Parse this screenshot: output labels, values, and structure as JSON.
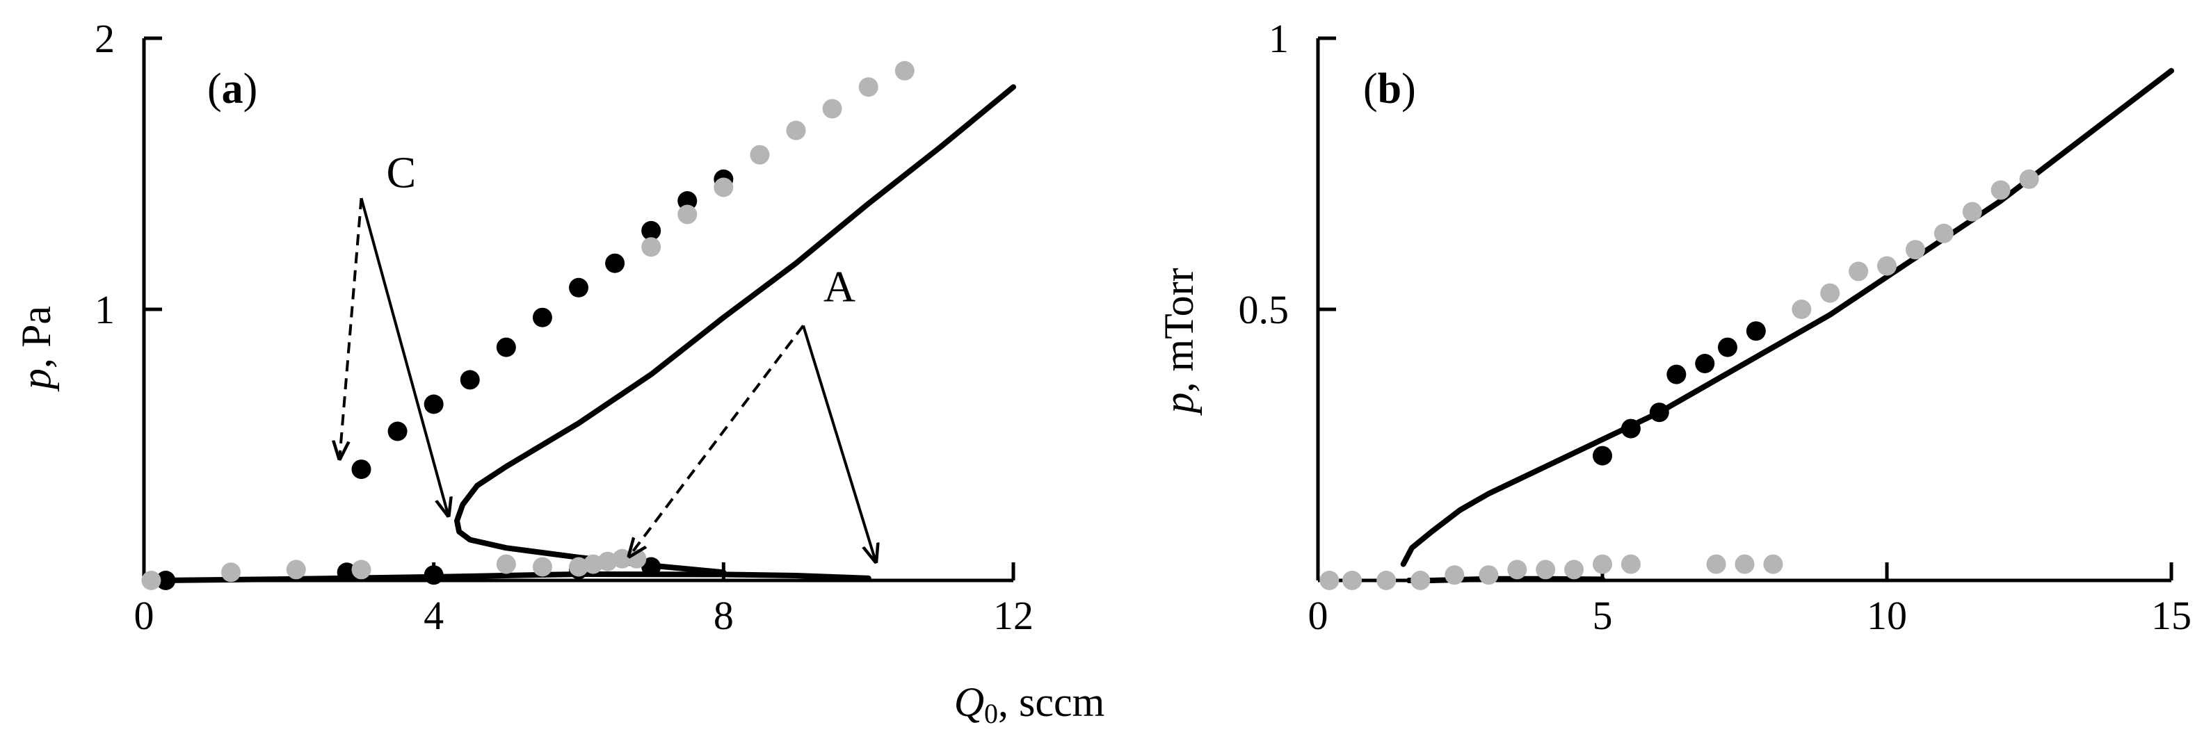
{
  "colors": {
    "black_series": "#000000",
    "gray_series": "#b5b5b5",
    "axis": "#000000"
  },
  "shared_xlabel": {
    "italic": "Q",
    "sub": "0",
    "rest": ", sccm"
  },
  "chart_data": [
    {
      "type": "scatter",
      "panel_label": {
        "open": "(",
        "letter": "a",
        "close": ")"
      },
      "ylabel": {
        "italic": "p",
        "rest": ", Pa"
      },
      "xlim": [
        0,
        12
      ],
      "ylim": [
        0,
        2
      ],
      "xticks": [
        "0",
        "4",
        "8",
        "12"
      ],
      "xtick_values": [
        0,
        4,
        8,
        12
      ],
      "yticks": [
        "1",
        "2"
      ],
      "ytick_values": [
        1,
        2
      ],
      "series": [
        {
          "color": "black",
          "style": "points",
          "points": [
            [
              3.0,
              0.41
            ],
            [
              3.5,
              0.55
            ],
            [
              4.0,
              0.65
            ],
            [
              4.5,
              0.74
            ],
            [
              5.0,
              0.86
            ],
            [
              5.5,
              0.97
            ],
            [
              6.0,
              1.08
            ],
            [
              6.5,
              1.17
            ],
            [
              7.0,
              1.29
            ],
            [
              7.5,
              1.4
            ],
            [
              8.0,
              1.48
            ]
          ]
        },
        {
          "color": "black",
          "style": "points",
          "points": [
            [
              0.3,
              0.0
            ],
            [
              2.8,
              0.03
            ],
            [
              4.0,
              0.02
            ],
            [
              6.0,
              0.04
            ],
            [
              7.0,
              0.05
            ]
          ]
        },
        {
          "color": "gray",
          "style": "points",
          "points": [
            [
              0.1,
              0.0
            ],
            [
              1.2,
              0.03
            ],
            [
              2.1,
              0.04
            ],
            [
              3.0,
              0.04
            ],
            [
              5.0,
              0.06
            ],
            [
              5.5,
              0.05
            ],
            [
              6.0,
              0.05
            ],
            [
              6.2,
              0.06
            ],
            [
              6.4,
              0.07
            ],
            [
              6.6,
              0.08
            ],
            [
              6.8,
              0.08
            ],
            [
              7.0,
              1.23
            ],
            [
              7.5,
              1.35
            ],
            [
              8.0,
              1.45
            ],
            [
              8.5,
              1.57
            ],
            [
              9.0,
              1.66
            ],
            [
              9.5,
              1.74
            ],
            [
              10.0,
              1.82
            ],
            [
              10.5,
              1.88
            ]
          ]
        },
        {
          "color": "black",
          "style": "line",
          "width": 8,
          "points": [
            [
              0.2,
              0.0
            ],
            [
              2.0,
              0.005
            ],
            [
              4.0,
              0.013
            ],
            [
              6.0,
              0.023
            ],
            [
              8.0,
              0.022
            ],
            [
              9.0,
              0.018
            ],
            [
              10.0,
              0.008
            ]
          ]
        },
        {
          "color": "black",
          "style": "line",
          "width": 8,
          "points": [
            [
              8.0,
              0.03
            ],
            [
              7.0,
              0.055
            ],
            [
              6.0,
              0.085
            ],
            [
              5.0,
              0.12
            ],
            [
              4.5,
              0.15
            ],
            [
              4.35,
              0.18
            ],
            [
              4.32,
              0.22
            ],
            [
              4.4,
              0.28
            ],
            [
              4.6,
              0.35
            ],
            [
              5.0,
              0.42
            ],
            [
              6.0,
              0.58
            ],
            [
              7.0,
              0.76
            ],
            [
              8.0,
              0.97
            ],
            [
              9.0,
              1.17
            ],
            [
              10.0,
              1.39
            ],
            [
              11.0,
              1.6
            ],
            [
              12.0,
              1.82
            ]
          ]
        }
      ],
      "annotations": [
        {
          "text": "C",
          "at": [
            3.55,
            1.45
          ],
          "arrows": [
            {
              "style": "dashed",
              "from": [
                3.0,
                1.41
              ],
              "to": [
                2.7,
                0.45
              ]
            },
            {
              "style": "solid",
              "from": [
                3.0,
                1.41
              ],
              "to": [
                4.2,
                0.24
              ]
            }
          ]
        },
        {
          "text": "A",
          "at": [
            9.6,
            1.03
          ],
          "arrows": [
            {
              "style": "dashed",
              "from": [
                9.1,
                0.94
              ],
              "to": [
                6.7,
                0.09
              ]
            },
            {
              "style": "solid",
              "from": [
                9.1,
                0.94
              ],
              "to": [
                10.1,
                0.07
              ]
            }
          ]
        }
      ]
    },
    {
      "type": "scatter",
      "panel_label": {
        "open": "(",
        "letter": "b",
        "close": ")"
      },
      "ylabel": {
        "italic": "p",
        "rest": ", mTorr"
      },
      "xlim": [
        0,
        15
      ],
      "ylim": [
        0,
        1
      ],
      "xticks": [
        "0",
        "5",
        "10",
        "15"
      ],
      "xtick_values": [
        0,
        5,
        10,
        15
      ],
      "yticks": [
        "0.5",
        "1"
      ],
      "ytick_values": [
        0.5,
        1
      ],
      "series": [
        {
          "color": "gray",
          "style": "points",
          "points": [
            [
              0.2,
              0.0
            ],
            [
              0.6,
              0.0
            ],
            [
              1.2,
              0.0
            ],
            [
              1.8,
              0.0
            ],
            [
              2.4,
              0.01
            ],
            [
              3.0,
              0.01
            ],
            [
              3.5,
              0.02
            ],
            [
              4.0,
              0.02
            ],
            [
              4.5,
              0.02
            ],
            [
              5.0,
              0.03
            ],
            [
              5.5,
              0.03
            ],
            [
              7.0,
              0.03
            ],
            [
              7.5,
              0.03
            ],
            [
              8.0,
              0.03
            ],
            [
              8.5,
              0.5
            ],
            [
              9.0,
              0.53
            ],
            [
              9.5,
              0.57
            ],
            [
              10.0,
              0.58
            ],
            [
              10.5,
              0.61
            ],
            [
              11.0,
              0.64
            ],
            [
              11.5,
              0.68
            ],
            [
              12.0,
              0.72
            ],
            [
              12.5,
              0.74
            ]
          ]
        },
        {
          "color": "black",
          "style": "points",
          "points": [
            [
              5.0,
              0.23
            ],
            [
              5.5,
              0.28
            ],
            [
              6.0,
              0.31
            ],
            [
              6.3,
              0.38
            ],
            [
              6.8,
              0.4
            ],
            [
              7.2,
              0.43
            ],
            [
              7.7,
              0.46
            ]
          ]
        },
        {
          "color": "black",
          "style": "line",
          "width": 8,
          "points": [
            [
              1.6,
              0.0
            ],
            [
              2.0,
              0.0
            ],
            [
              3.0,
              0.003
            ],
            [
              4.0,
              0.003
            ],
            [
              5.0,
              0.002
            ]
          ]
        },
        {
          "color": "black",
          "style": "line",
          "width": 8,
          "points": [
            [
              1.5,
              0.03
            ],
            [
              1.65,
              0.06
            ],
            [
              2.0,
              0.09
            ],
            [
              2.5,
              0.13
            ],
            [
              3.0,
              0.16
            ],
            [
              4.0,
              0.21
            ],
            [
              5.0,
              0.26
            ],
            [
              6.0,
              0.31
            ],
            [
              7.0,
              0.37
            ],
            [
              8.0,
              0.43
            ],
            [
              9.0,
              0.49
            ],
            [
              10.0,
              0.56
            ],
            [
              11.0,
              0.63
            ],
            [
              12.0,
              0.7
            ],
            [
              13.0,
              0.78
            ],
            [
              14.0,
              0.86
            ],
            [
              15.0,
              0.94
            ]
          ]
        }
      ],
      "annotations": []
    }
  ]
}
